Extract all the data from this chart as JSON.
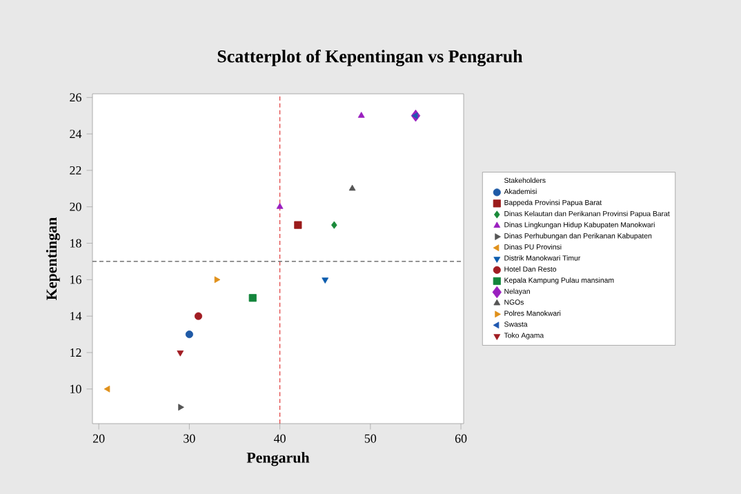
{
  "chart_data": {
    "type": "scatter",
    "title": "Scatterplot of Kepentingan vs Pengaruh",
    "xlabel": "Pengaruh",
    "ylabel": "Kepentingan",
    "legend_title": "Stakeholders",
    "legend": "right",
    "xlim": [
      19.3,
      60.3
    ],
    "ylim": [
      8.1,
      26.2
    ],
    "xticks": [
      20,
      30,
      40,
      50,
      60
    ],
    "yticks": [
      10,
      12,
      14,
      16,
      18,
      20,
      22,
      24,
      26
    ],
    "grid": false,
    "ref_lines": [
      {
        "axis": "x",
        "value": 40,
        "color": "#e03c3c",
        "line_style": "dashed"
      },
      {
        "axis": "y",
        "value": 17,
        "color": "#555555",
        "line_style": "dashed"
      }
    ],
    "series": [
      {
        "name": "Akademisi",
        "color": "#1f5aa6",
        "marker": "circle",
        "x": [
          30
        ],
        "values": [
          13
        ]
      },
      {
        "name": "Bappeda Provinsi Papua Barat",
        "color": "#9b1b1b",
        "marker": "square",
        "x": [
          42
        ],
        "values": [
          19
        ]
      },
      {
        "name": "Dinas Kelautan dan Perikanan Provinsi Papua Barat",
        "color": "#1a8a3a",
        "marker": "diamond",
        "x": [
          46
        ],
        "values": [
          19
        ]
      },
      {
        "name": "Dinas Lingkungan Hidup Kabupaten Manokwari",
        "color": "#9a1fbf",
        "marker": "triangle",
        "x": [
          40,
          49
        ],
        "values": [
          20,
          25
        ]
      },
      {
        "name": "Dinas Perhubungan dan Perikanan Kabupaten",
        "color": "#555555",
        "marker": "triangle-right",
        "x": [
          29
        ],
        "values": [
          9
        ]
      },
      {
        "name": "Dinas PU Provinsi",
        "color": "#e0901a",
        "marker": "triangle-left",
        "x": [
          21
        ],
        "values": [
          10
        ]
      },
      {
        "name": "Distrik Manokwari Timur",
        "color": "#0b5cad",
        "marker": "triangle-down",
        "x": [
          45
        ],
        "values": [
          16
        ]
      },
      {
        "name": "Hotel Dan Resto",
        "color": "#a11d23",
        "marker": "circle",
        "x": [
          31
        ],
        "values": [
          14
        ]
      },
      {
        "name": "Kepala Kampung Pulau mansinam",
        "color": "#13853b",
        "marker": "square",
        "x": [
          37
        ],
        "values": [
          15
        ]
      },
      {
        "name": "Nelayan",
        "color": "#9a1fbf",
        "marker": "diamond",
        "x": [
          55
        ],
        "values": [
          25
        ]
      },
      {
        "name": "NGOs",
        "color": "#555555",
        "marker": "triangle",
        "x": [
          48
        ],
        "values": [
          21
        ]
      },
      {
        "name": "Polres Manokwari",
        "color": "#e0901a",
        "marker": "triangle-right",
        "x": [
          33
        ],
        "values": [
          16
        ]
      },
      {
        "name": "Swasta",
        "color": "#1f58b0",
        "marker": "triangle-left",
        "x": [
          55
        ],
        "values": [
          25
        ]
      },
      {
        "name": "Toko Agama",
        "color": "#a11d23",
        "marker": "triangle-down",
        "x": [
          29
        ],
        "values": [
          12
        ]
      }
    ]
  }
}
